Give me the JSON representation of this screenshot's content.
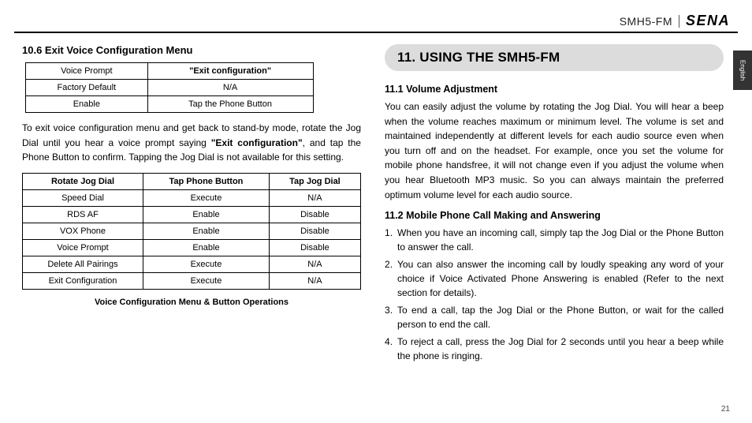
{
  "header": {
    "product": "SMH5-FM",
    "brand": "SENA",
    "sideTab": "English"
  },
  "left": {
    "heading106": "10.6 Exit Voice Configuration Menu",
    "table1": {
      "r1c1": "Voice Prompt",
      "r1c2": "\"Exit configuration\"",
      "r2c1": "Factory Default",
      "r2c2": "N/A",
      "r3c1": "Enable",
      "r3c2": "Tap the Phone Button"
    },
    "para_a": "To exit voice configuration menu and get back to stand-by mode, rotate the Jog Dial until you hear a voice prompt saying ",
    "para_bold": "\"Exit configuration\"",
    "para_b": ", and tap the Phone Button to confirm. Tapping the Jog Dial is not available for this setting.",
    "table2": {
      "h1": "Rotate Jog Dial",
      "h2": "Tap Phone Button",
      "h3": "Tap Jog Dial",
      "rows": [
        [
          "Speed Dial",
          "Execute",
          "N/A"
        ],
        [
          "RDS AF",
          "Enable",
          "Disable"
        ],
        [
          "VOX Phone",
          "Enable",
          "Disable"
        ],
        [
          "Voice Prompt",
          "Enable",
          "Disable"
        ],
        [
          "Delete All Pairings",
          "Execute",
          "N/A"
        ],
        [
          "Exit Configuration",
          "Execute",
          "N/A"
        ]
      ]
    },
    "caption": "Voice Configuration Menu & Button Operations"
  },
  "right": {
    "chapter": "11. USING THE SMH5-FM",
    "heading111": "11.1 Volume Adjustment",
    "para111": "You can easily adjust the volume by rotating the Jog Dial. You will hear a beep when the volume reaches maximum or minimum level. The volume is set and maintained independently at different levels for each audio source even when you turn off and on the headset. For example, once you set the volume for mobile phone handsfree, it will not change even if you adjust the volume when you hear Bluetooth MP3 music. So you can always maintain the preferred optimum volume level for each audio source.",
    "heading112": "11.2 Mobile Phone Call Making and Answering",
    "steps": [
      "When you have an incoming call, simply tap the Jog Dial or the Phone Button to answer the call.",
      "You can also answer the incoming call by loudly speaking any word of your choice if Voice Activated Phone Answering is enabled (Refer to the next section for details).",
      "To end a call, tap the Jog Dial or the Phone Button, or wait for the called person to end the call.",
      "To reject a call, press the Jog Dial for 2 seconds until you hear a beep while the phone is ringing."
    ]
  },
  "pageNumber": "21"
}
